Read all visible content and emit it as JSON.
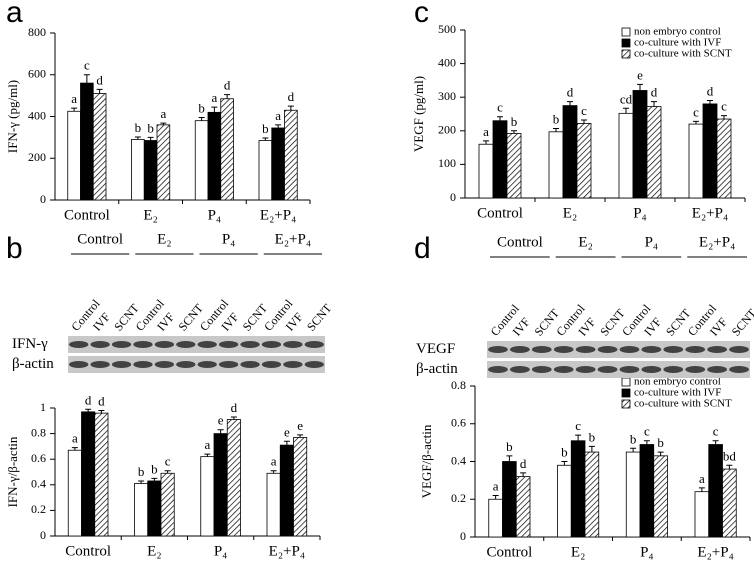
{
  "chart_data": [
    {
      "type": "bar",
      "panel": "a",
      "ylabel": "IFN-γ (pg/ml)",
      "categories": [
        "Control",
        "E₂",
        "P₄",
        "E₂+P₄"
      ],
      "ylim": [
        0,
        800
      ],
      "yticks": [
        0,
        200,
        400,
        600,
        800
      ],
      "series": [
        {
          "color": "#ffffff",
          "values": [
            425,
            290,
            380,
            285
          ],
          "errors": [
            15,
            12,
            15,
            12
          ],
          "letters": [
            "a",
            "b",
            "b",
            "b"
          ]
        },
        {
          "color": "#000000",
          "values": [
            560,
            285,
            420,
            345
          ],
          "errors": [
            40,
            15,
            25,
            15
          ],
          "letters": [
            "c",
            "b",
            "a",
            "a"
          ]
        },
        {
          "color": "#ffffff",
          "hatch": true,
          "values": [
            510,
            360,
            485,
            430
          ],
          "errors": [
            20,
            8,
            20,
            20
          ],
          "letters": [
            "d",
            "a",
            "d",
            "d"
          ]
        }
      ]
    },
    {
      "type": "bar",
      "panel": "b",
      "ylabel": "IFN-γ/β-actin",
      "categories": [
        "Control",
        "E₂",
        "P₄",
        "E₂+P₄"
      ],
      "ylim": [
        0,
        1
      ],
      "yticks": [
        0,
        0.2,
        0.4,
        0.6,
        0.8,
        1
      ],
      "blot": {
        "groups": [
          "Control",
          "E₂",
          "P₄",
          "E₂+P₄"
        ],
        "lanes": [
          "Control",
          "IVF",
          "SCNT"
        ],
        "rows": [
          "IFN-γ",
          "β-actin"
        ]
      },
      "series": [
        {
          "color": "#ffffff",
          "values": [
            0.67,
            0.41,
            0.62,
            0.49
          ],
          "errors": [
            0.02,
            0.02,
            0.02,
            0.02
          ],
          "letters": [
            "a",
            "b",
            "a",
            "a"
          ]
        },
        {
          "color": "#000000",
          "values": [
            0.97,
            0.43,
            0.8,
            0.71
          ],
          "errors": [
            0.02,
            0.02,
            0.03,
            0.03
          ],
          "letters": [
            "d",
            "b",
            "e",
            "e"
          ]
        },
        {
          "color": "#ffffff",
          "hatch": true,
          "values": [
            0.96,
            0.49,
            0.91,
            0.77
          ],
          "errors": [
            0.02,
            0.02,
            0.02,
            0.02
          ],
          "letters": [
            "d",
            "c",
            "d",
            "e"
          ]
        }
      ]
    },
    {
      "type": "bar",
      "panel": "c",
      "ylabel": "VEGF (pg/ml)",
      "legend": "upper right",
      "categories": [
        "Control",
        "E₂",
        "P₄",
        "E₂+P₄"
      ],
      "ylim": [
        0,
        500
      ],
      "yticks": [
        0,
        100,
        200,
        300,
        400,
        500
      ],
      "series": [
        {
          "name": "non embryo control",
          "color": "#ffffff",
          "values": [
            160,
            197,
            252,
            220
          ],
          "errors": [
            10,
            10,
            15,
            8
          ],
          "letters": [
            "a",
            "b",
            "cd",
            "c"
          ]
        },
        {
          "name": "co-culture with IVF",
          "color": "#000000",
          "values": [
            230,
            275,
            320,
            280
          ],
          "errors": [
            12,
            12,
            18,
            10
          ],
          "letters": [
            "c",
            "d",
            "e",
            "d"
          ]
        },
        {
          "name": "co-culture with SCNT",
          "color": "#ffffff",
          "hatch": true,
          "values": [
            192,
            222,
            272,
            235
          ],
          "errors": [
            8,
            10,
            15,
            10
          ],
          "letters": [
            "b",
            "c",
            "d",
            "c"
          ]
        }
      ]
    },
    {
      "type": "bar",
      "panel": "d",
      "ylabel": "VEGF/β-actin",
      "legend": "upper right",
      "categories": [
        "Control",
        "E₂",
        "P₄",
        "E₂+P₄"
      ],
      "ylim": [
        0,
        0.8
      ],
      "yticks": [
        0,
        0.2,
        0.4,
        0.6,
        0.8
      ],
      "blot": {
        "groups": [
          "Control",
          "E₂",
          "P₄",
          "E₂+P₄"
        ],
        "lanes": [
          "Control",
          "IVF",
          "SCNT"
        ],
        "rows": [
          "VEGF",
          "β-actin"
        ]
      },
      "series": [
        {
          "name": "non embryo control",
          "color": "#ffffff",
          "values": [
            0.2,
            0.38,
            0.45,
            0.24
          ],
          "errors": [
            0.02,
            0.02,
            0.02,
            0.02
          ],
          "letters": [
            "a",
            "b",
            "b",
            "a"
          ]
        },
        {
          "name": "co-culture with IVF",
          "color": "#000000",
          "values": [
            0.4,
            0.51,
            0.49,
            0.49
          ],
          "errors": [
            0.03,
            0.03,
            0.02,
            0.02
          ],
          "letters": [
            "b",
            "c",
            "c",
            "c"
          ]
        },
        {
          "name": "co-culture with SCNT",
          "color": "#ffffff",
          "hatch": true,
          "values": [
            0.32,
            0.45,
            0.43,
            0.36
          ],
          "errors": [
            0.02,
            0.03,
            0.02,
            0.02
          ],
          "letters": [
            "d",
            "b",
            "b",
            "bd"
          ]
        }
      ]
    }
  ]
}
